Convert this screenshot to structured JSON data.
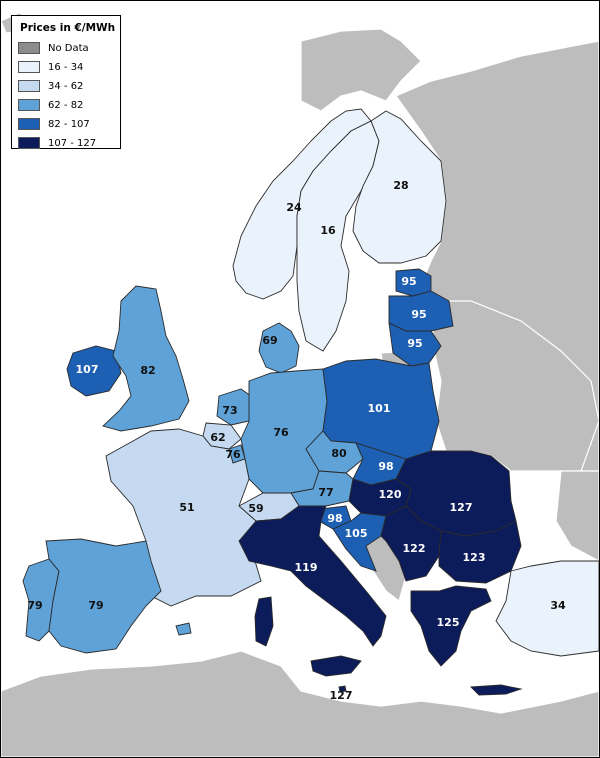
{
  "legend": {
    "title": "Prices in €/MWh",
    "classes": [
      {
        "label": "No Data",
        "color": "#8c8c8c"
      },
      {
        "label": "16 - 34",
        "color": "#eaf2fb"
      },
      {
        "label": "34 - 62",
        "color": "#c5daf0"
      },
      {
        "label": "62 - 82",
        "color": "#5fa2d8"
      },
      {
        "label": "82 - 107",
        "color": "#1d5fb3"
      },
      {
        "label": "107 - 127",
        "color": "#0c1b5a"
      }
    ]
  },
  "colors": {
    "sea": "#ffffff",
    "non_member_land": "#bdbdbd",
    "border": "#2b2b2b"
  },
  "regions": {
    "norway": "24",
    "sweden": "16",
    "finland": "28",
    "estonia": "95",
    "latvia": "95",
    "lithuania": "95",
    "ireland": "107",
    "great_britain": "82",
    "denmark": "69",
    "netherlands": "73",
    "belgium": "62",
    "luxembourg": "76",
    "germany": "76",
    "poland": "101",
    "czechia": "80",
    "slovakia": "98",
    "austria": "77",
    "hungary": "120",
    "romania": "127",
    "slovenia": "98",
    "croatia": "105",
    "serbia": "122",
    "bulgaria": "123",
    "switzerland": "59",
    "france": "51",
    "italy": "119",
    "greece": "125",
    "malta": "127",
    "portugal": "79",
    "spain": "79",
    "turkey": "34"
  }
}
